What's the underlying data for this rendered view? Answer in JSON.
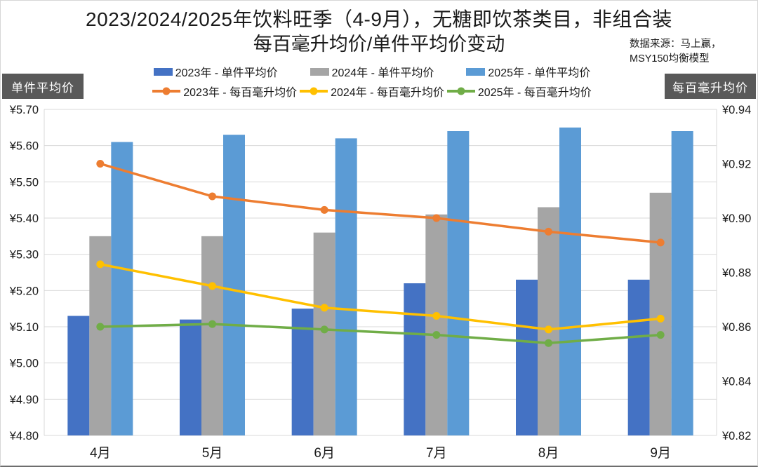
{
  "header": {
    "title_line1": "2023/2024/2025年饮料旺季（4-9月），无糖即饮茶类目，非组合装",
    "title_line2": "每百毫升均价/单件平均价变动",
    "source_line1": "数据来源：马上赢，",
    "source_line2": "MSY150均衡模型"
  },
  "axis_badges": {
    "left": "单件平均价",
    "right": "每百毫升均价"
  },
  "chart_data": {
    "type": "bar+line",
    "title": "2023/2024/2025年饮料旺季（4-9月），无糖即饮茶类目，非组合装 每百毫升均价/单件平均价变动",
    "categories": [
      "4月",
      "5月",
      "6月",
      "7月",
      "8月",
      "9月"
    ],
    "bar_series": [
      {
        "name": "2023年 - 单件平均价",
        "color": "#4472C4",
        "axis": "left",
        "values": [
          5.13,
          5.12,
          5.15,
          5.22,
          5.23,
          5.23
        ]
      },
      {
        "name": "2024年 - 单件平均价",
        "color": "#A5A5A5",
        "axis": "left",
        "values": [
          5.35,
          5.35,
          5.36,
          5.41,
          5.43,
          5.47
        ]
      },
      {
        "name": "2025年 - 单件平均价",
        "color": "#5B9BD5",
        "axis": "left",
        "values": [
          5.61,
          5.63,
          5.62,
          5.64,
          5.65,
          5.64
        ]
      }
    ],
    "line_series": [
      {
        "name": "2023年 - 每百毫升均价",
        "color": "#ED7D31",
        "axis": "right",
        "values": [
          0.92,
          0.908,
          0.903,
          0.9,
          0.895,
          0.891
        ]
      },
      {
        "name": "2024年 - 每百毫升均价",
        "color": "#FFC000",
        "axis": "right",
        "values": [
          0.883,
          0.875,
          0.867,
          0.864,
          0.859,
          0.863
        ]
      },
      {
        "name": "2025年 - 每百毫升均价",
        "color": "#70AD47",
        "axis": "right",
        "values": [
          0.86,
          0.861,
          0.859,
          0.857,
          0.854,
          0.857
        ]
      }
    ],
    "left_axis": {
      "label": "单件平均价",
      "min": 4.8,
      "max": 5.7,
      "step": 0.1,
      "ticks": [
        "¥5.70",
        "¥5.60",
        "¥5.50",
        "¥5.40",
        "¥5.30",
        "¥5.20",
        "¥5.10",
        "¥5.00",
        "¥4.90",
        "¥4.80"
      ]
    },
    "right_axis": {
      "label": "每百毫升均价",
      "min": 0.82,
      "max": 0.94,
      "step": 0.02,
      "ticks": [
        "¥0.94",
        "¥0.92",
        "¥0.90",
        "¥0.88",
        "¥0.86",
        "¥0.84",
        "¥0.82"
      ]
    },
    "legend_position": "top",
    "grid": true,
    "gridline_color": "#D9D9D9",
    "text_color": "#1a1a1a"
  }
}
